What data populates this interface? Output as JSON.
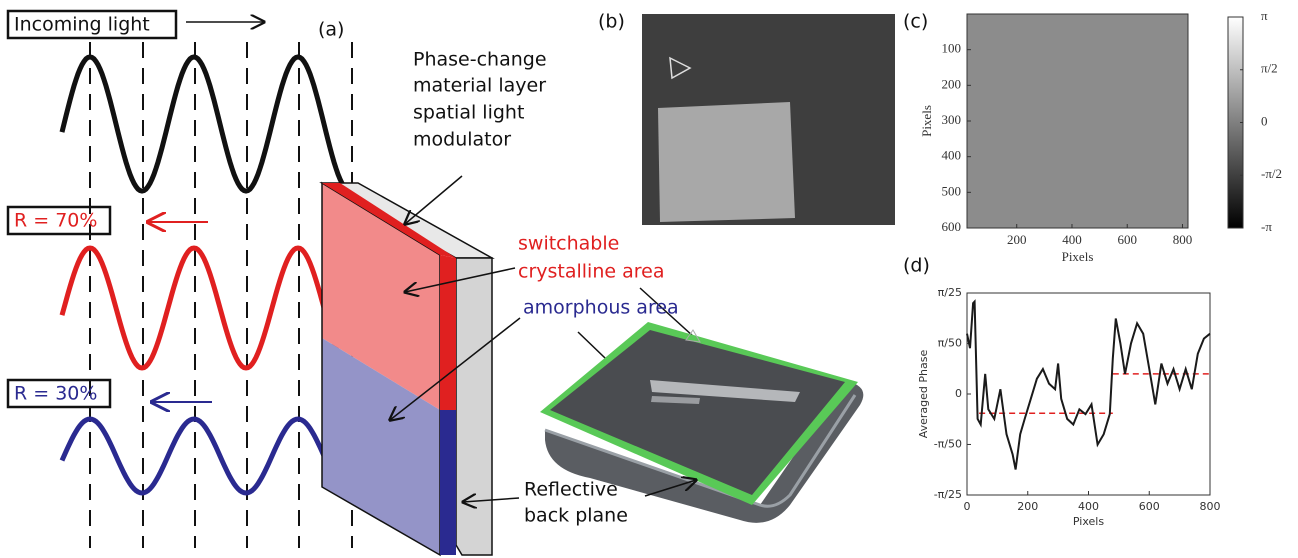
{
  "panel_labels": [
    "(a)",
    "(b)",
    "(c)",
    "(d)"
  ],
  "diagram": {
    "incoming": "Incoming light",
    "reflected_high": "R = 70%",
    "reflected_low": "R = 30%",
    "slm": [
      "Phase-change",
      "material layer",
      "spatial light",
      "modulator"
    ],
    "crystalline": [
      "switchable",
      "crystalline area"
    ],
    "amorphous": "amorphous area",
    "back_plane": [
      "Reflective",
      "back plane"
    ]
  },
  "chart_data": [
    {
      "type": "image",
      "xlabel": "Pixels",
      "ylabel": "Pixels",
      "xlim": [
        20,
        820
      ],
      "xticks": [
        200,
        400,
        600,
        800
      ],
      "ylim": [
        600,
        0
      ],
      "yticks": [
        100,
        200,
        300,
        400,
        500,
        600
      ],
      "colorbar": {
        "lim": [
          -3.1416,
          3.1416
        ],
        "ticks": [
          {
            "value": 3.1416,
            "label": "π"
          },
          {
            "value": 1.5708,
            "label": "π/2"
          },
          0,
          {
            "value": -1.5708,
            "label": "-π/2"
          },
          {
            "value": -3.1416,
            "label": "-π"
          }
        ]
      }
    },
    {
      "type": "line",
      "xlabel": "Pixels",
      "ylabel": "Averaged Phase",
      "color": "#1a1a1a",
      "x": [
        0,
        10,
        20,
        25,
        35,
        45,
        60,
        70,
        90,
        110,
        130,
        150,
        160,
        175,
        190,
        210,
        230,
        250,
        270,
        290,
        300,
        310,
        330,
        350,
        370,
        390,
        410,
        430,
        450,
        470,
        480,
        490,
        505,
        520,
        540,
        560,
        580,
        600,
        620,
        640,
        660,
        680,
        700,
        720,
        740,
        760,
        780,
        800
      ],
      "values": [
        0.075,
        0.057,
        0.113,
        0.115,
        -0.031,
        -0.038,
        0.025,
        -0.019,
        -0.031,
        0.006,
        -0.05,
        -0.075,
        -0.094,
        -0.05,
        -0.031,
        -0.006,
        0.019,
        0.031,
        0.013,
        0.006,
        0.038,
        -0.006,
        -0.031,
        -0.038,
        -0.019,
        -0.025,
        -0.013,
        -0.063,
        -0.05,
        -0.025,
        0.044,
        0.094,
        0.063,
        0.025,
        0.063,
        0.088,
        0.075,
        0.031,
        -0.013,
        0.038,
        0.013,
        0.031,
        0.006,
        0.031,
        0.006,
        0.05,
        0.069,
        0.075
      ],
      "reference_lines": [
        {
          "x": [
            40,
            480
          ],
          "y": -0.024
        },
        {
          "x": [
            480,
            800
          ],
          "y": 0.025
        }
      ],
      "reference_color": "#e02020",
      "xlim": [
        0,
        800
      ],
      "xticks": [
        0,
        200,
        400,
        600,
        800
      ],
      "ylim": [
        -0.1257,
        0.1257
      ],
      "yticks": [
        {
          "value": -0.1257,
          "label": "-π/25"
        },
        {
          "value": -0.0628,
          "label": "-π/50"
        },
        0,
        {
          "value": 0.0628,
          "label": "π/50"
        },
        {
          "value": 0.1257,
          "label": "π/25"
        }
      ]
    }
  ]
}
